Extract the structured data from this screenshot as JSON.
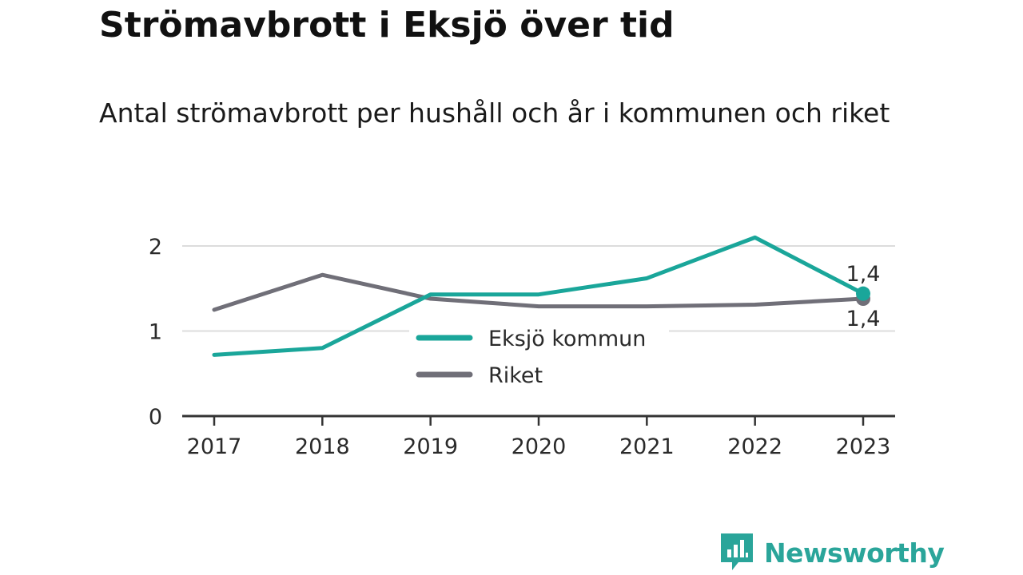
{
  "title": "Strömavbrott i Eksjö över tid",
  "subtitle": "Antal strömavbrott per hushåll och år i kommunen och riket",
  "brand": {
    "name": "Newsworthy",
    "icon": "bar-chart-speech-bubble-icon",
    "color": "#2aa59a"
  },
  "chart_data": {
    "type": "line",
    "categories": [
      "2017",
      "2018",
      "2019",
      "2020",
      "2021",
      "2022",
      "2023"
    ],
    "series": [
      {
        "name": "Eksjö kommun",
        "color": "#1aa69a",
        "values": [
          0.72,
          0.8,
          1.43,
          1.43,
          1.62,
          2.1,
          1.44
        ]
      },
      {
        "name": "Riket",
        "color": "#706f78",
        "values": [
          1.25,
          1.66,
          1.38,
          1.29,
          1.29,
          1.31,
          1.38
        ]
      }
    ],
    "yticks": [
      "0",
      "1",
      "2"
    ],
    "ylim": [
      0,
      2
    ],
    "grid": true,
    "legend_position": "center",
    "end_labels": [
      "1,4",
      "1,4"
    ],
    "xlabel": "",
    "ylabel": ""
  }
}
